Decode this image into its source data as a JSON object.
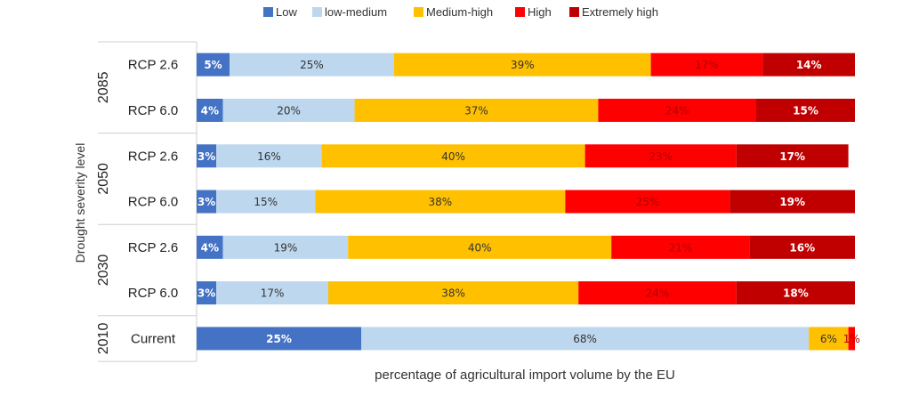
{
  "chart_data": {
    "type": "bar",
    "orientation": "horizontal",
    "stacked": true,
    "title": "",
    "xlabel": "percentage of agricultural import volume by the EU",
    "ylabel": "Drought severity level",
    "xlim": [
      0,
      100
    ],
    "legend_position": "top",
    "groups": [
      {
        "label": "2085",
        "rows": [
          "RCP 2.6",
          "RCP 6.0"
        ]
      },
      {
        "label": "2050",
        "rows": [
          "RCP 2.6",
          "RCP 6.0"
        ]
      },
      {
        "label": "2030",
        "rows": [
          "RCP 2.6",
          "RCP 6.0"
        ]
      },
      {
        "label": "2010",
        "rows": [
          "Current"
        ]
      }
    ],
    "categories": [
      "RCP 2.6",
      "RCP 6.0",
      "RCP 2.6",
      "RCP 6.0",
      "RCP 2.6",
      "RCP 6.0",
      "Current"
    ],
    "series": [
      {
        "name": "Low",
        "color": "#4472c4",
        "label_color": "#ffffff",
        "values": [
          5,
          4,
          3,
          3,
          4,
          3,
          25
        ],
        "labels": [
          "5%",
          "4%",
          "3%",
          "3%",
          "4%",
          "3%",
          "25%"
        ]
      },
      {
        "name": "low-medium",
        "color": "#bdd7ee",
        "label_color": "#333333",
        "values": [
          25,
          20,
          16,
          15,
          19,
          17,
          68
        ],
        "labels": [
          "25%",
          "20%",
          "16%",
          "15%",
          "19%",
          "17%",
          "68%"
        ]
      },
      {
        "name": "Medium-high",
        "color": "#ffc000",
        "label_color": "#333333",
        "values": [
          39,
          37,
          40,
          38,
          40,
          38,
          6
        ],
        "labels": [
          "39%",
          "37%",
          "40%",
          "38%",
          "40%",
          "38%",
          "6%"
        ]
      },
      {
        "name": "High",
        "color": "#ff0000",
        "label_color": "#b00000",
        "values": [
          17,
          24,
          23,
          25,
          21,
          24,
          1
        ],
        "labels": [
          "17%",
          "24%",
          "23%",
          "25%",
          "21%",
          "24%",
          "1%"
        ]
      },
      {
        "name": "Extremely high",
        "color": "#c00000",
        "label_color": "#ffffff",
        "values": [
          14,
          15,
          17,
          19,
          16,
          18,
          0
        ],
        "labels": [
          "14%",
          "15%",
          "17%",
          "19%",
          "16%",
          "18%",
          ""
        ]
      }
    ]
  }
}
